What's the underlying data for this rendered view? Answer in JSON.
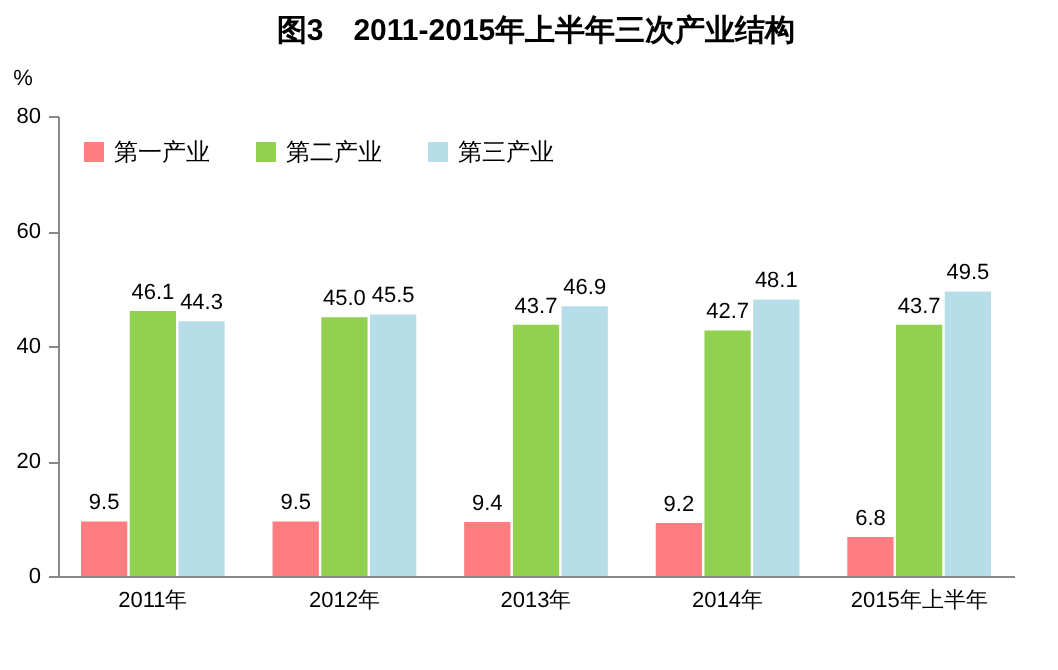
{
  "chart_data": {
    "type": "bar",
    "title": "图3　2011-2015年上半年三次产业结构",
    "ylabel": "%",
    "categories": [
      "2011年",
      "2012年",
      "2013年",
      "2014年",
      "2015年上半年"
    ],
    "series": [
      {
        "name": "第一产业",
        "color": "#ff7c80",
        "values": [
          9.5,
          9.5,
          9.4,
          9.2,
          6.8
        ]
      },
      {
        "name": "第二产业",
        "color": "#92d050",
        "values": [
          46.1,
          45.0,
          43.7,
          42.7,
          43.7
        ],
        "value_labels": [
          "46.1",
          "45.0",
          "43.7",
          "42.7",
          "43.7"
        ]
      },
      {
        "name": "第三产业",
        "color": "#b7dee8",
        "values": [
          44.3,
          45.5,
          46.9,
          48.1,
          49.5
        ]
      }
    ],
    "ylim": [
      0,
      80
    ],
    "yticks": [
      0,
      20,
      40,
      60,
      80
    ],
    "data_labels": true,
    "legend": "top left"
  }
}
